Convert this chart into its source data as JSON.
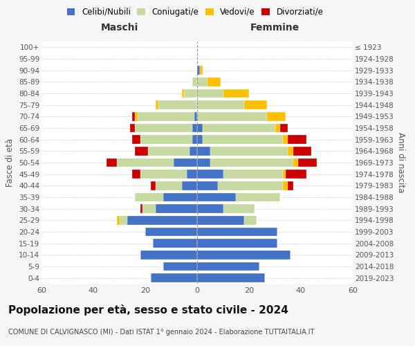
{
  "age_groups": [
    "0-4",
    "5-9",
    "10-14",
    "15-19",
    "20-24",
    "25-29",
    "30-34",
    "35-39",
    "40-44",
    "45-49",
    "50-54",
    "55-59",
    "60-64",
    "65-69",
    "70-74",
    "75-79",
    "80-84",
    "85-89",
    "90-94",
    "95-99",
    "100+"
  ],
  "birth_years": [
    "2019-2023",
    "2014-2018",
    "2009-2013",
    "2004-2008",
    "1999-2003",
    "1994-1998",
    "1989-1993",
    "1984-1988",
    "1979-1983",
    "1974-1978",
    "1969-1973",
    "1964-1968",
    "1959-1963",
    "1954-1958",
    "1949-1953",
    "1944-1948",
    "1939-1943",
    "1934-1938",
    "1929-1933",
    "1924-1928",
    "≤ 1923"
  ],
  "colors": {
    "celibi": "#4472c4",
    "coniugati": "#c5d9a0",
    "vedovi": "#ffc000",
    "divorziati": "#cc0000",
    "background": "#f5f5f5",
    "plot_bg": "#ffffff",
    "grid": "#cccccc",
    "dashed_line": "#999999"
  },
  "maschi": {
    "celibi": [
      18,
      13,
      22,
      17,
      20,
      27,
      16,
      13,
      6,
      4,
      9,
      3,
      2,
      2,
      1,
      0,
      0,
      0,
      0,
      0,
      0
    ],
    "coniugati": [
      0,
      0,
      0,
      0,
      0,
      3,
      5,
      11,
      10,
      18,
      22,
      16,
      20,
      22,
      22,
      15,
      5,
      2,
      0,
      0,
      0
    ],
    "vedovi": [
      0,
      0,
      0,
      0,
      0,
      1,
      0,
      0,
      0,
      0,
      0,
      0,
      0,
      0,
      1,
      1,
      1,
      0,
      0,
      0,
      0
    ],
    "divorziati": [
      0,
      0,
      0,
      0,
      0,
      0,
      1,
      0,
      2,
      3,
      4,
      5,
      3,
      2,
      1,
      0,
      0,
      0,
      0,
      0,
      0
    ]
  },
  "femmine": {
    "celibi": [
      26,
      24,
      36,
      31,
      31,
      18,
      10,
      15,
      8,
      10,
      5,
      5,
      2,
      2,
      0,
      0,
      0,
      0,
      1,
      0,
      0
    ],
    "coniugati": [
      0,
      0,
      0,
      0,
      0,
      5,
      12,
      17,
      25,
      23,
      32,
      30,
      31,
      28,
      27,
      18,
      10,
      4,
      0,
      0,
      0
    ],
    "vedovi": [
      0,
      0,
      0,
      0,
      0,
      0,
      0,
      0,
      2,
      1,
      2,
      2,
      2,
      2,
      7,
      9,
      10,
      5,
      1,
      0,
      0
    ],
    "divorziati": [
      0,
      0,
      0,
      0,
      0,
      0,
      0,
      0,
      2,
      8,
      7,
      7,
      7,
      3,
      0,
      0,
      0,
      0,
      0,
      0,
      0
    ]
  },
  "title": "Popolazione per età, sesso e stato civile - 2024",
  "subtitle": "COMUNE DI CALVIGNASCO (MI) - Dati ISTAT 1° gennaio 2024 - Elaborazione TUTTAITALIA.IT",
  "xlabel_left": "Maschi",
  "xlabel_right": "Femmine",
  "ylabel_left": "Fasce di età",
  "ylabel_right": "Anni di nascita",
  "xlim": 60,
  "legend_labels": [
    "Celibi/Nubili",
    "Coniugati/e",
    "Vedovi/e",
    "Divorziati/e"
  ]
}
